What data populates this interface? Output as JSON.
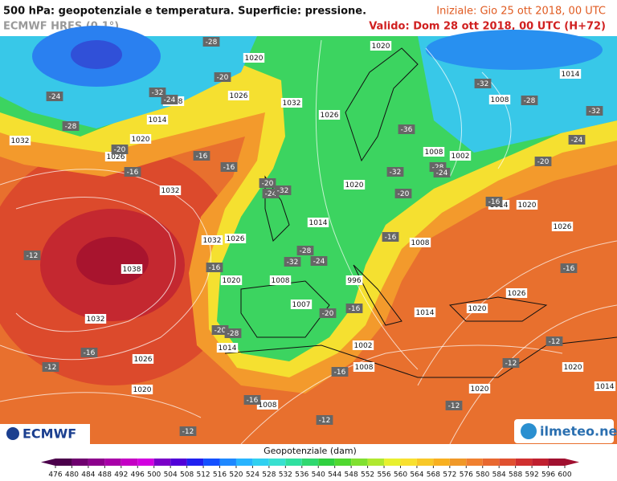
{
  "header": {
    "title": "500 hPa: geopotenziale e temperatura. Superficie: pressione.",
    "model": "ECMWF HRES (0.1°)",
    "initial": "Iniziale: Gio 25 ott 2018, 00 UTC",
    "valid": "Valido: Dom 28 ott 2018, 00 UTC (H+72)"
  },
  "map_labels": {
    "pressure": [
      "1020",
      "1026",
      "1032",
      "1014",
      "1008",
      "1020",
      "1026",
      "1032",
      "1032",
      "1032",
      "1026",
      "1038",
      "1020",
      "1008",
      "1014",
      "1026",
      "1020",
      "1007",
      "996",
      "1008",
      "1014",
      "1020",
      "1026",
      "1020",
      "1014",
      "1026",
      "1014",
      "1008",
      "1002",
      "1008",
      "1020",
      "1032",
      "1026",
      "1020",
      "1014",
      "1002",
      "1008",
      "1008",
      "1020",
      "1020",
      "1014"
    ],
    "temperature": [
      "-28",
      "-20",
      "-32",
      "-24",
      "-24",
      "-28",
      "-20",
      "-16",
      "-16",
      "-16",
      "-20",
      "-24",
      "-32",
      "-12",
      "-16",
      "-32",
      "-28",
      "-24",
      "-20",
      "-16",
      "-20",
      "-28",
      "-16",
      "-12",
      "-16",
      "-16",
      "-12",
      "-12",
      "-12",
      "-12",
      "-12",
      "-16",
      "-16",
      "-20",
      "-24",
      "-32",
      "-28",
      "-32",
      "-36",
      "-32",
      "-28",
      "-24",
      "-20",
      "-16"
    ]
  },
  "logos": {
    "left": "ECMWF",
    "right": "ilmeteo.net"
  },
  "colorbar": {
    "title": "Geopotenziale (dam)",
    "ticks": [
      476,
      480,
      484,
      488,
      492,
      496,
      500,
      504,
      508,
      512,
      516,
      520,
      524,
      528,
      532,
      536,
      540,
      544,
      548,
      552,
      556,
      560,
      564,
      568,
      572,
      576,
      580,
      584,
      588,
      592,
      596,
      600
    ],
    "colors": [
      "#4b004b",
      "#6e006e",
      "#8c008c",
      "#a800a8",
      "#c400c4",
      "#d200e0",
      "#7a00c8",
      "#5000d8",
      "#2020f0",
      "#1450ff",
      "#1e88ff",
      "#28b4ff",
      "#30d0f0",
      "#38e0d0",
      "#30e0a0",
      "#30d870",
      "#30d040",
      "#50d830",
      "#80e030",
      "#b0e830",
      "#e8f030",
      "#f8e030",
      "#f8c828",
      "#f8b020",
      "#f09828",
      "#f08030",
      "#e86830",
      "#e05030",
      "#d03030",
      "#c02030",
      "#a01030"
    ]
  }
}
